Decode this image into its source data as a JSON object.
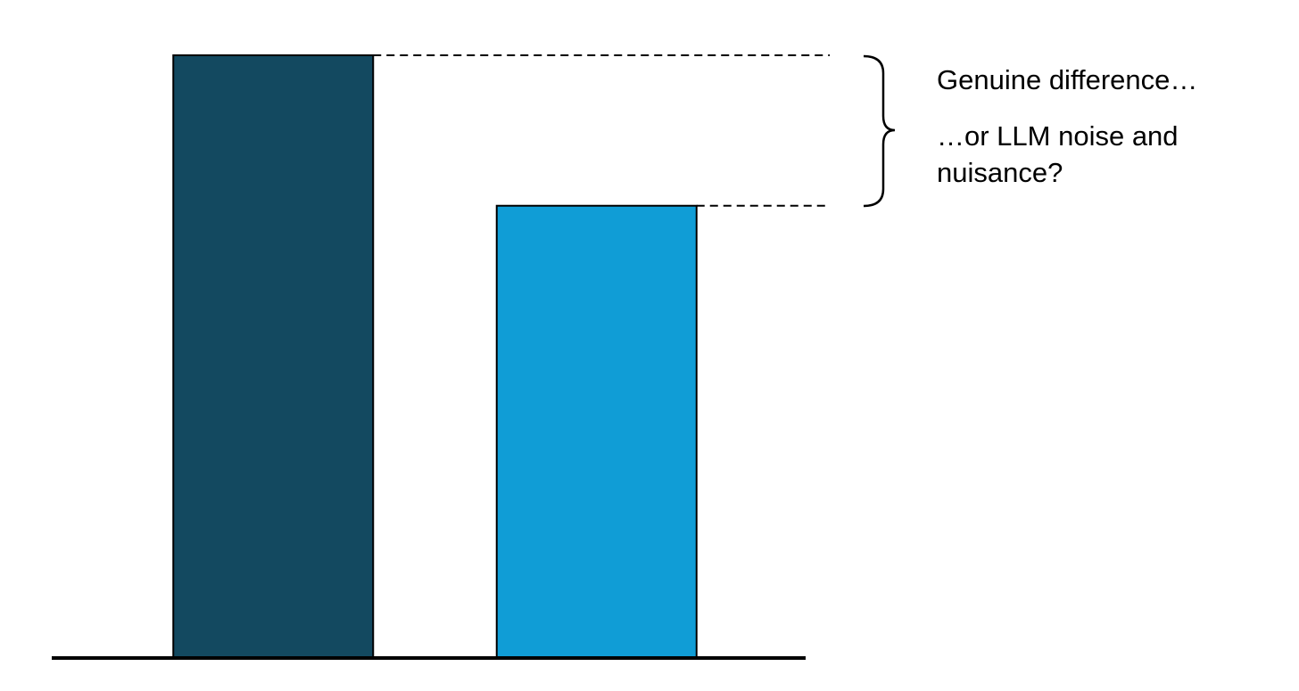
{
  "chart_data": {
    "type": "bar",
    "values": [
      100,
      75
    ],
    "colors": [
      "#134960",
      "#109dd6"
    ],
    "ylim": [
      0,
      100
    ],
    "annotations": [
      "Genuine difference…",
      "…or LLM noise and nuisance?"
    ]
  }
}
